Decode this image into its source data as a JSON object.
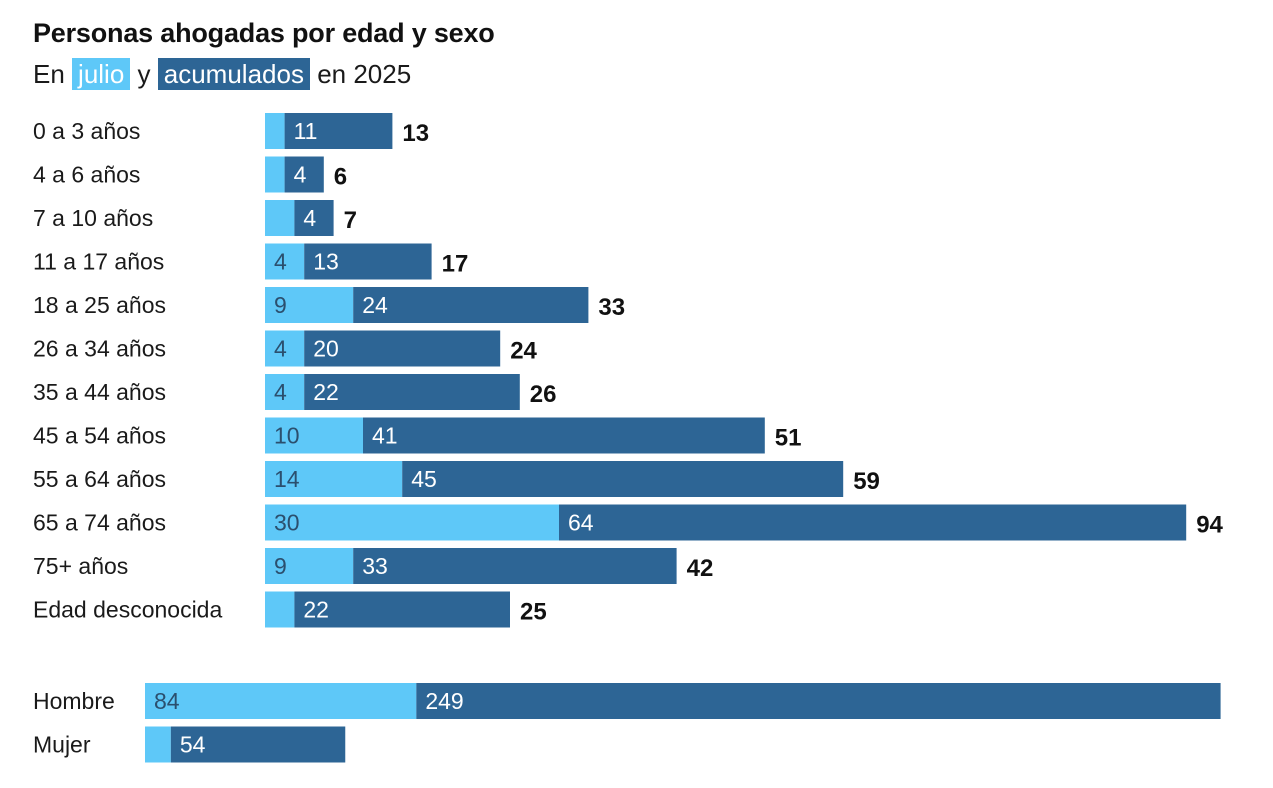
{
  "title": "Personas ahogadas por edad y sexo",
  "subtitle": {
    "prefix": "En",
    "julio_label": "julio",
    "middle": "y",
    "acum_label": "acumulados",
    "suffix": "en 2025"
  },
  "colors": {
    "julio": "#5ec8f8",
    "acumulados": "#2d6595"
  },
  "chart_data": [
    {
      "type": "bar",
      "orientation": "horizontal",
      "stacked": true,
      "categories": [
        "0 a 3 años",
        "4 a 6 años",
        "7 a 10 años",
        "11 a 17 años",
        "18 a 25 años",
        "26 a 34 años",
        "35 a 44 años",
        "45 a 54 años",
        "55 a 64 años",
        "65 a 74 años",
        "75+ años",
        "Edad desconocida"
      ],
      "series": [
        {
          "name": "julio",
          "values": [
            2,
            2,
            3,
            4,
            9,
            4,
            4,
            10,
            14,
            30,
            9,
            3
          ],
          "labels": [
            "",
            "",
            "",
            "4",
            "9",
            "4",
            "4",
            "10",
            "14",
            "30",
            "9",
            ""
          ]
        },
        {
          "name": "acumulados",
          "values": [
            11,
            4,
            4,
            13,
            24,
            20,
            22,
            41,
            45,
            64,
            33,
            22
          ],
          "labels": [
            "11",
            "4",
            "4",
            "13",
            "24",
            "20",
            "22",
            "41",
            "45",
            "64",
            "33",
            "22"
          ]
        }
      ],
      "totals": [
        13,
        6,
        7,
        17,
        33,
        24,
        26,
        51,
        59,
        94,
        42,
        25
      ],
      "xlim": [
        0,
        94
      ]
    },
    {
      "type": "bar",
      "orientation": "horizontal",
      "stacked": true,
      "categories": [
        "Hombre",
        "Mujer"
      ],
      "series": [
        {
          "name": "julio",
          "values": [
            84,
            8
          ],
          "labels": [
            "84",
            ""
          ]
        },
        {
          "name": "acumulados",
          "values": [
            249,
            54
          ],
          "labels": [
            "249",
            "54"
          ]
        }
      ],
      "xlim": [
        0,
        333
      ]
    }
  ]
}
